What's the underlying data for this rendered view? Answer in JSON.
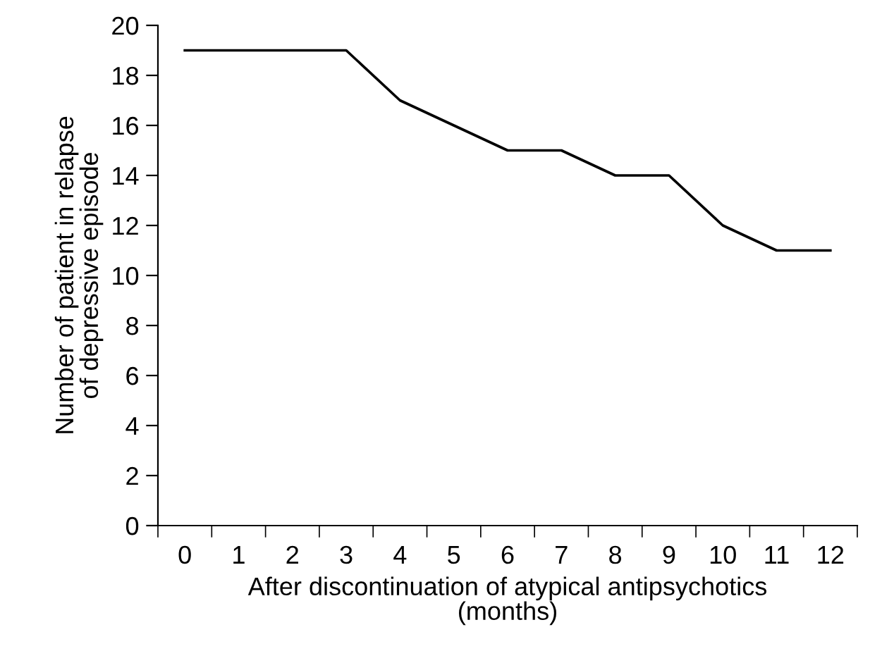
{
  "chart_data": {
    "type": "line",
    "xlabel": "After discontinuation of atypical antipsychotics\n(months)",
    "ylabel": "Number of patient in relapse\nof depressive episode",
    "categories": [
      "0",
      "1",
      "2",
      "3",
      "4",
      "5",
      "6",
      "7",
      "8",
      "9",
      "10",
      "11",
      "12"
    ],
    "series": [
      {
        "color": "#000000",
        "values": [
          19,
          19,
          19,
          19,
          17,
          16,
          15,
          15,
          14,
          14,
          12,
          11,
          11
        ]
      }
    ],
    "ylim": [
      0,
      20
    ],
    "yticks": [
      0,
      2,
      4,
      6,
      8,
      10,
      12,
      14,
      16,
      18,
      20
    ],
    "grid": false,
    "legend": false,
    "marker": "none",
    "line_style": "solid"
  }
}
